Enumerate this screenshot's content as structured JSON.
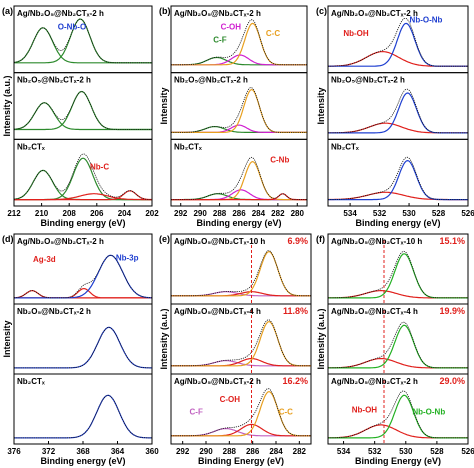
{
  "figure": {
    "panels": [
      {
        "id": "a",
        "letter": "(a)",
        "ylabel": "Intensity (a.u.)",
        "xlabel": "Binding energy (eV)",
        "ticks": [
          "212",
          "210",
          "208",
          "206",
          "204",
          "202"
        ],
        "rows": [
          {
            "label": "Ag/Nb₂O₅@Nb₂CTₓ-2 h",
            "notes": [
              {
                "text": "O-Nb-O",
                "color": "#1f3fd0"
              }
            ]
          },
          {
            "label": "Nb₂O₅@Nb₂CTₓ-2 h",
            "notes": []
          },
          {
            "label": "Nb₂CTₓ",
            "notes": [
              {
                "text": "Nb-C",
                "color": "#e0201c"
              }
            ]
          }
        ]
      },
      {
        "id": "b",
        "letter": "(b)",
        "ylabel": "Intensity",
        "xlabel": "Binding energy (eV)",
        "ticks": [
          "292",
          "290",
          "288",
          "286",
          "284",
          "282",
          "280"
        ],
        "rows": [
          {
            "label": "Ag/Nb₂O₅@Nb₂CTₓ-2 h",
            "notes": [
              {
                "text": "C-F",
                "color": "#2d8a2d"
              },
              {
                "text": "C-OH",
                "color": "#d020d0"
              },
              {
                "text": "C-C",
                "color": "#e8a020"
              }
            ]
          },
          {
            "label": "Nb₂O₅@Nb₂CTₓ-2 h",
            "notes": []
          },
          {
            "label": "Nb₂CTₓ",
            "notes": [
              {
                "text": "C-Nb",
                "color": "#e0201c"
              }
            ]
          }
        ]
      },
      {
        "id": "c",
        "letter": "(c)",
        "ylabel": "Intensity",
        "xlabel": "Binding energy (eV)",
        "ticks": [
          "534",
          "532",
          "530",
          "528",
          "526"
        ],
        "rows": [
          {
            "label": "Ag/Nb₂O₅@Nb₂CTₓ-2 h",
            "notes": [
              {
                "text": "Nb-O-Nb",
                "color": "#1f3fd0"
              },
              {
                "text": "Nb-OH",
                "color": "#e0201c"
              }
            ]
          },
          {
            "label": "Nb₂O₅@Nb₂CTₓ-2 h",
            "notes": []
          },
          {
            "label": "Nb₂CTₓ",
            "notes": []
          }
        ]
      },
      {
        "id": "d",
        "letter": "(d)",
        "ylabel": "Intensity",
        "xlabel": "Binding energy (eV)",
        "ticks": [
          "376",
          "372",
          "368",
          "364",
          "360"
        ],
        "rows": [
          {
            "label": "Ag/Nb₂O₅@Nb₂CTₓ-2 h",
            "notes": [
              {
                "text": "Ag-3d",
                "color": "#e0201c"
              },
              {
                "text": "Nb-3p",
                "color": "#1f3fd0"
              }
            ]
          },
          {
            "label": "Nb₂O₅@Nb₂CTₓ-2 h",
            "notes": []
          },
          {
            "label": "Nb₂CTₓ",
            "notes": []
          }
        ]
      },
      {
        "id": "e",
        "letter": "(e)",
        "ylabel": "Intensity (a.u.)",
        "xlabel": "Binding Energy (eV)",
        "ticks": [
          "292",
          "290",
          "288",
          "286",
          "284",
          "282"
        ],
        "rows": [
          {
            "label": "Ag/Nb₂O₅@Nb₂CTₓ-10 h",
            "pct": "6.9%",
            "notes": []
          },
          {
            "label": "Ag/Nb₂O₅@Nb₂CTₓ-4 h",
            "pct": "11.8%",
            "notes": []
          },
          {
            "label": "Ag/Nb₂O₅@Nb₂CTₓ-2 h",
            "pct": "16.2%",
            "notes": [
              {
                "text": "C-OH",
                "color": "#e0201c"
              },
              {
                "text": "C-F",
                "color": "#c060c0"
              },
              {
                "text": "C-C",
                "color": "#e8a020"
              }
            ]
          }
        ]
      },
      {
        "id": "f",
        "letter": "(f)",
        "ylabel": "Intensity (a.u.)",
        "xlabel": "Binding Energy (eV)",
        "ticks": [
          "534",
          "532",
          "530",
          "528",
          "526"
        ],
        "rows": [
          {
            "label": "Ag/Nb₂O₅@Nb₂CTₓ-10 h",
            "pct": "15.1%",
            "notes": []
          },
          {
            "label": "Ag/Nb₂O₅@Nb₂CTₓ-4 h",
            "pct": "19.9%",
            "notes": []
          },
          {
            "label": "Ag/Nb₂O₅@Nb₂CTₓ-2 h",
            "pct": "29.0%",
            "notes": [
              {
                "text": "Nb-OH",
                "color": "#e0201c"
              },
              {
                "text": "Nb-O-Nb",
                "color": "#22b022"
              }
            ]
          }
        ]
      }
    ]
  },
  "chart_data": [
    {
      "type": "line",
      "panel": "(a)",
      "xlabel": "Binding energy (eV)",
      "ylabel": "Intensity (a.u.)",
      "xlim": [
        212,
        202
      ],
      "x_reversed": true,
      "series_shape": "gaussian",
      "subplots": [
        {
          "label": "Ag/Nb₂O₅@Nb₂CTₓ-2 h",
          "peaks": [
            {
              "center": 209.9,
              "height": 0.72,
              "width": 0.7,
              "color": "#2d8a2d"
            },
            {
              "center": 207.2,
              "height": 0.9,
              "width": 0.7,
              "color": "#2d8a2d"
            }
          ],
          "baseline": 0.12
        },
        {
          "label": "Nb₂O₅@Nb₂CTₓ-2 h",
          "peaks": [
            {
              "center": 209.8,
              "height": 0.55,
              "width": 0.7,
              "color": "#2d8a2d"
            },
            {
              "center": 207.1,
              "height": 0.78,
              "width": 0.7,
              "color": "#2d8a2d"
            }
          ],
          "baseline": 0.12
        },
        {
          "label": "Nb₂CTₓ",
          "peaks": [
            {
              "center": 209.9,
              "height": 0.6,
              "width": 0.7,
              "color": "#2d8a2d"
            },
            {
              "center": 207.0,
              "height": 0.85,
              "width": 0.7,
              "color": "#2d8a2d"
            },
            {
              "center": 206.2,
              "height": 0.12,
              "width": 1.0,
              "color": "#e0201c"
            },
            {
              "center": 203.6,
              "height": 0.18,
              "width": 0.45,
              "color": "#e0201c"
            }
          ],
          "baseline": 0.05
        }
      ]
    },
    {
      "type": "line",
      "panel": "(b)",
      "xlabel": "Binding energy (eV)",
      "ylabel": "Intensity",
      "xlim": [
        293,
        279
      ],
      "x_reversed": true,
      "series_shape": "gaussian",
      "subplots": [
        {
          "label": "Ag/Nb₂O₅@Nb₂CTₓ-2 h",
          "peaks": [
            {
              "center": 288.3,
              "height": 0.15,
              "width": 1.0,
              "color": "#2d8a2d"
            },
            {
              "center": 285.9,
              "height": 0.2,
              "width": 0.9,
              "color": "#d020d0"
            },
            {
              "center": 284.6,
              "height": 0.85,
              "width": 0.8,
              "color": "#e8a020"
            }
          ],
          "baseline": 0.08
        },
        {
          "label": "Nb₂O₅@Nb₂CTₓ-2 h",
          "peaks": [
            {
              "center": 288.5,
              "height": 0.12,
              "width": 1.0,
              "color": "#2d8a2d"
            },
            {
              "center": 286.0,
              "height": 0.15,
              "width": 0.8,
              "color": "#d020d0"
            },
            {
              "center": 284.7,
              "height": 0.88,
              "width": 0.8,
              "color": "#e8a020"
            }
          ],
          "baseline": 0.06
        },
        {
          "label": "Nb₂CTₓ",
          "peaks": [
            {
              "center": 288.2,
              "height": 0.12,
              "width": 1.0,
              "color": "#2d8a2d"
            },
            {
              "center": 285.8,
              "height": 0.2,
              "width": 0.9,
              "color": "#d020d0"
            },
            {
              "center": 284.6,
              "height": 0.78,
              "width": 0.8,
              "color": "#e8a020"
            },
            {
              "center": 281.5,
              "height": 0.12,
              "width": 0.4,
              "color": "#e0201c"
            }
          ],
          "baseline": 0.05
        }
      ]
    },
    {
      "type": "line",
      "panel": "(c)",
      "xlabel": "Binding energy (eV)",
      "ylabel": "Intensity",
      "xlim": [
        535.5,
        526
      ],
      "x_reversed": true,
      "series_shape": "gaussian",
      "subplots": [
        {
          "label": "Ag/Nb₂O₅@Nb₂CTₓ-2 h",
          "peaks": [
            {
              "center": 531.8,
              "height": 0.3,
              "width": 1.1,
              "color": "#e0201c"
            },
            {
              "center": 530.2,
              "height": 0.88,
              "width": 0.6,
              "color": "#1f3fd0"
            }
          ],
          "baseline": 0.05
        },
        {
          "label": "Nb₂O₅@Nb₂CTₓ-2 h",
          "peaks": [
            {
              "center": 531.6,
              "height": 0.2,
              "width": 1.1,
              "color": "#e0201c"
            },
            {
              "center": 530.1,
              "height": 0.82,
              "width": 0.6,
              "color": "#1f3fd0"
            }
          ],
          "baseline": 0.05
        },
        {
          "label": "Nb₂CTₓ",
          "peaks": [
            {
              "center": 531.6,
              "height": 0.15,
              "width": 1.2,
              "color": "#e0201c"
            },
            {
              "center": 530.1,
              "height": 0.8,
              "width": 0.6,
              "color": "#1f3fd0"
            }
          ],
          "baseline": 0.05
        }
      ]
    },
    {
      "type": "line",
      "panel": "(d)",
      "xlabel": "Binding energy (eV)",
      "ylabel": "Intensity",
      "xlim": [
        376,
        360
      ],
      "x_reversed": true,
      "series_shape": "gaussian",
      "subplots": [
        {
          "label": "Ag/Nb₂O₅@Nb₂CTₓ-2 h",
          "peaks": [
            {
              "center": 373.9,
              "height": 0.14,
              "width": 0.7,
              "color": "#e0201c"
            },
            {
              "center": 367.9,
              "height": 0.18,
              "width": 0.7,
              "color": "#e0201c"
            },
            {
              "center": 364.8,
              "height": 0.82,
              "width": 1.4,
              "color": "#1f3fd0"
            }
          ],
          "baseline": 0.04
        },
        {
          "label": "Nb₂O₅@Nb₂CTₓ-2 h",
          "peaks": [
            {
              "center": 365.0,
              "height": 0.78,
              "width": 1.3,
              "color": "#1f3fd0"
            }
          ],
          "baseline": 0.04
        },
        {
          "label": "Nb₂CTₓ",
          "peaks": [
            {
              "center": 365.1,
              "height": 0.82,
              "width": 1.3,
              "color": "#1f3fd0"
            }
          ],
          "baseline": 0.04
        }
      ]
    },
    {
      "type": "line",
      "panel": "(e)",
      "xlabel": "Binding Energy (eV)",
      "ylabel": "Intensity (a.u.)",
      "xlim": [
        293,
        281
      ],
      "x_reversed": true,
      "reference_line": 286.1,
      "series_shape": "gaussian",
      "subplots": [
        {
          "label": "Ag/Nb₂O₅@Nb₂CTₓ-10 h",
          "pct": "6.9%",
          "peaks": [
            {
              "center": 288.3,
              "height": 0.08,
              "width": 1.0,
              "color": "#c060c0"
            },
            {
              "center": 286.1,
              "height": 0.08,
              "width": 0.9,
              "color": "#e0201c"
            },
            {
              "center": 284.6,
              "height": 0.85,
              "width": 0.75,
              "color": "#e8a020"
            }
          ],
          "baseline": 0.08
        },
        {
          "label": "Ag/Nb₂O₅@Nb₂CTₓ-4 h",
          "pct": "11.8%",
          "peaks": [
            {
              "center": 288.3,
              "height": 0.1,
              "width": 1.0,
              "color": "#c060c0"
            },
            {
              "center": 286.1,
              "height": 0.14,
              "width": 0.9,
              "color": "#e0201c"
            },
            {
              "center": 284.6,
              "height": 0.85,
              "width": 0.75,
              "color": "#e8a020"
            }
          ],
          "baseline": 0.08
        },
        {
          "label": "Ag/Nb₂O₅@Nb₂CTₓ-2 h",
          "pct": "16.2%",
          "peaks": [
            {
              "center": 288.3,
              "height": 0.14,
              "width": 1.0,
              "color": "#c060c0"
            },
            {
              "center": 286.1,
              "height": 0.22,
              "width": 0.9,
              "color": "#e0201c"
            },
            {
              "center": 284.6,
              "height": 0.85,
              "width": 0.75,
              "color": "#e8a020"
            }
          ],
          "baseline": 0.08
        }
      ]
    },
    {
      "type": "line",
      "panel": "(f)",
      "xlabel": "Binding Energy (eV)",
      "ylabel": "Intensity (a.u.)",
      "xlim": [
        535,
        526
      ],
      "x_reversed": true,
      "reference_line": 531.4,
      "series_shape": "gaussian",
      "subplots": [
        {
          "label": "Ag/Nb₂O₅@Nb₂CTₓ-10 h",
          "pct": "15.1%",
          "peaks": [
            {
              "center": 531.6,
              "height": 0.14,
              "width": 1.0,
              "color": "#e0201c"
            },
            {
              "center": 530.1,
              "height": 0.85,
              "width": 0.6,
              "color": "#22b022"
            }
          ],
          "baseline": 0.04
        },
        {
          "label": "Ag/Nb₂O₅@Nb₂CTₓ-4 h",
          "pct": "19.9%",
          "peaks": [
            {
              "center": 531.6,
              "height": 0.18,
              "width": 1.0,
              "color": "#e0201c"
            },
            {
              "center": 530.1,
              "height": 0.82,
              "width": 0.6,
              "color": "#22b022"
            }
          ],
          "baseline": 0.04
        },
        {
          "label": "Ag/Nb₂O₅@Nb₂CTₓ-2 h",
          "pct": "29.0%",
          "peaks": [
            {
              "center": 531.6,
              "height": 0.25,
              "width": 1.0,
              "color": "#e0201c"
            },
            {
              "center": 530.1,
              "height": 0.82,
              "width": 0.6,
              "color": "#22b022"
            }
          ],
          "baseline": 0.04
        }
      ]
    }
  ]
}
